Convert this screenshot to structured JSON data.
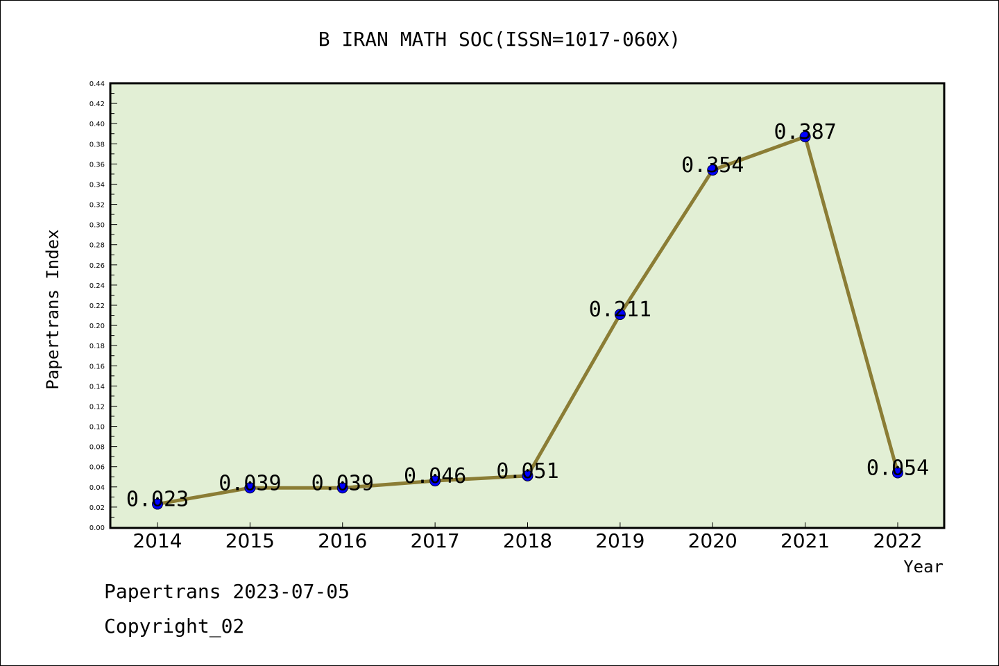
{
  "chart_data": {
    "type": "line",
    "title": "B IRAN MATH SOC(ISSN=1017-060X)",
    "xlabel": "Year",
    "ylabel": "Papertrans Index",
    "categories": [
      "2014",
      "2015",
      "2016",
      "2017",
      "2018",
      "2019",
      "2020",
      "2021",
      "2022"
    ],
    "values": [
      0.023,
      0.039,
      0.039,
      0.046,
      0.051,
      0.211,
      0.354,
      0.387,
      0.054
    ],
    "data_labels": [
      "0.023",
      "0.039",
      "0.039",
      "0.046",
      "0.051",
      "0.211",
      "0.354",
      "0.387",
      "0.054"
    ],
    "ylim": [
      0,
      0.44
    ],
    "yticks": [
      "0.00",
      "0.02",
      "0.04",
      "0.06",
      "0.08",
      "0.10",
      "0.12",
      "0.14",
      "0.16",
      "0.18",
      "0.20",
      "0.22",
      "0.24",
      "0.26",
      "0.28",
      "0.30",
      "0.32",
      "0.34",
      "0.36",
      "0.38",
      "0.40",
      "0.42",
      "0.44"
    ],
    "grid": false,
    "colors": {
      "plot_background": "#e2efd5",
      "line": "#8b7d35",
      "marker": "#0000ff"
    }
  },
  "footer": {
    "source": "Papertrans 2023-07-05",
    "copyright": "Copyright_02"
  }
}
